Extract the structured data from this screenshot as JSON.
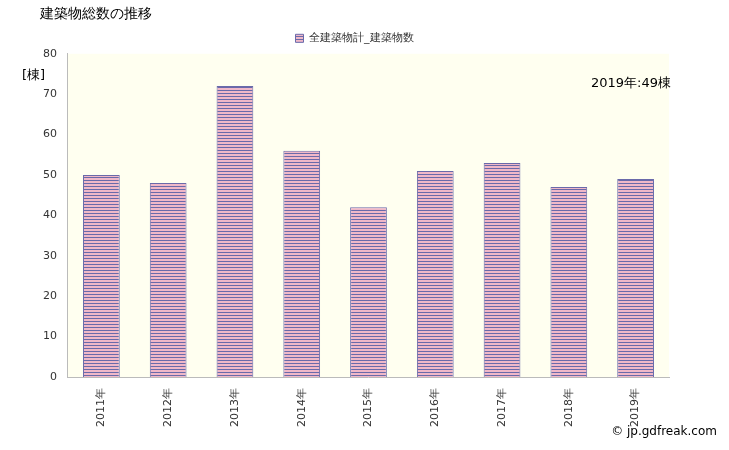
{
  "chart_data": {
    "type": "bar",
    "title": "建築物総数の推移",
    "y_label": "[棟]",
    "annotations": [
      "2019年:49棟",
      "© jp.gdfreak.com"
    ],
    "categories": [
      "2011年",
      "2012年",
      "2013年",
      "2014年",
      "2015年",
      "2016年",
      "2017年",
      "2018年",
      "2019年"
    ],
    "series": [
      {
        "name": "全建築物計_建築物数",
        "color": "#6a6aaa",
        "values": [
          50,
          48,
          72,
          56,
          42,
          51,
          53,
          47,
          49
        ]
      }
    ],
    "ylim": [
      0,
      80
    ],
    "yticks": [
      0,
      10,
      20,
      30,
      40,
      50,
      60,
      70,
      80
    ],
    "grid": false,
    "legend": "top"
  }
}
